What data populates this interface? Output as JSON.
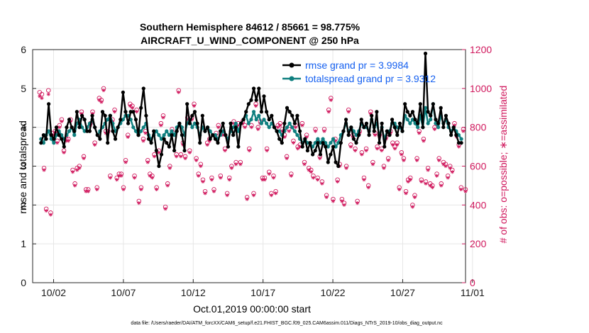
{
  "chart_data": {
    "type": "line",
    "title_line1": "Southern Hemisphere 84612 / 85661 = 98.775%",
    "title_line2": "AIRCRAFT_U_WIND_COMPONENT @ 250 hPa",
    "xlabel": "Oct.01,2019 00:00:00 start",
    "ylabel": "rmse and totalspread",
    "ylabel_right": "# of obs: o=possible; ∗=assimilated",
    "footnote": "data file: /Users/raeder/DAI/ATM_forcXX/CAM6_setup/f.e21.FHIST_BGC.f09_025.CAM6assim.011/Diags_NTrS_2019-10/obs_diag_output.nc",
    "xlim": [
      0.5,
      31.5
    ],
    "ylim": [
      0,
      6
    ],
    "ylim_right": [
      0,
      1200
    ],
    "x_ticks": [
      {
        "value": 2,
        "label": "10/02"
      },
      {
        "value": 7,
        "label": "10/07"
      },
      {
        "value": 12,
        "label": "10/12"
      },
      {
        "value": 17,
        "label": "10/17"
      },
      {
        "value": 22,
        "label": "10/22"
      },
      {
        "value": 27,
        "label": "10/27"
      },
      {
        "value": 32,
        "label": "11/01"
      }
    ],
    "y_ticks": [
      "0",
      "1",
      "2",
      "3",
      "4",
      "5",
      "6"
    ],
    "y_ticks_right": [
      "0",
      "200",
      "400",
      "600",
      "800",
      "1000",
      "1200"
    ],
    "colors": {
      "rmse": "#000000",
      "totalspread": "#0f7f7f",
      "obs": "#d0185d",
      "legend_text": "#1560f0",
      "grid": "#e6e6e6"
    },
    "series": [
      {
        "name": "rmse grand pr = 3.9984",
        "legend": "rmse grand pr = 3.9984",
        "values": [
          3.6,
          3.8,
          3.7,
          4.6,
          3.8,
          3.7,
          4.0,
          3.8,
          3.7,
          3.5,
          4.0,
          4.2,
          4.0,
          3.9,
          4.4,
          4.0,
          4.3,
          4.2,
          3.9,
          3.9,
          4.3,
          4.0,
          3.8,
          3.7,
          4.4,
          4.3,
          3.6,
          4.3,
          3.9,
          3.7,
          4.0,
          4.2,
          4.9,
          4.4,
          4.1,
          4.4,
          4.4,
          4.2,
          3.8,
          4.5,
          5.0,
          4.3,
          3.7,
          3.6,
          3.9,
          3.4,
          3.0,
          3.3,
          3.7,
          3.6,
          3.5,
          3.8,
          3.4,
          3.9,
          4.1,
          3.8,
          3.4,
          4.6,
          4.1,
          4.3,
          4.4,
          4.1,
          3.6,
          4.3,
          3.9,
          4.0,
          3.7,
          3.8,
          3.7,
          3.6,
          3.9,
          4.1,
          3.8,
          3.5,
          4.1,
          3.8,
          4.0,
          3.5,
          4.1,
          4.2,
          4.4,
          4.6,
          4.7,
          5.0,
          4.7,
          5.0,
          4.4,
          4.8,
          4.4,
          4.2,
          4.3,
          4.0,
          3.9,
          3.7,
          3.6,
          4.1,
          4.5,
          4.4,
          4.3,
          4.1,
          4.3,
          3.9,
          3.5,
          3.7,
          3.4,
          3.6,
          3.3,
          3.4,
          3.6,
          3.3,
          3.6,
          3.5,
          3.1,
          3.3,
          3.5,
          3.1,
          3.0,
          3.6,
          3.9,
          4.2,
          3.8,
          4.0,
          3.7,
          3.6,
          3.8,
          4.2,
          4.0,
          4.1,
          3.8,
          4.3,
          3.9,
          4.4,
          3.6,
          4.1,
          3.5,
          3.9,
          3.8,
          4.2,
          4.0,
          3.8,
          4.1,
          3.9,
          4.6,
          4.4,
          4.3,
          4.4,
          4.2,
          4.1,
          4.6,
          4.0,
          5.9,
          4.4,
          4.3,
          4.6,
          4.2,
          4.1,
          4.5,
          4.0,
          4.3,
          4.1,
          3.8,
          4.0,
          3.8,
          3.6,
          3.6
        ]
      },
      {
        "name": "totalspread grand pr = 3.9312",
        "legend": "totalspread grand pr = 3.9312",
        "values": [
          3.7,
          3.6,
          3.8,
          3.9,
          3.7,
          3.6,
          3.8,
          3.9,
          3.8,
          3.7,
          3.8,
          3.9,
          4.0,
          3.8,
          4.1,
          4.2,
          4.0,
          3.9,
          4.0,
          4.1,
          4.2,
          4.0,
          3.8,
          3.9,
          4.0,
          4.1,
          4.2,
          4.3,
          4.1,
          3.9,
          4.0,
          4.1,
          4.2,
          4.3,
          4.3,
          4.2,
          4.0,
          3.9,
          3.8,
          3.9,
          4.0,
          4.1,
          3.8,
          3.7,
          3.8,
          3.9,
          3.8,
          3.7,
          3.8,
          3.9,
          3.8,
          3.9,
          3.8,
          4.0,
          4.1,
          4.0,
          3.8,
          4.1,
          4.2,
          4.0,
          4.1,
          4.0,
          3.8,
          4.0,
          3.9,
          4.0,
          3.9,
          3.8,
          3.8,
          3.7,
          3.8,
          3.9,
          3.8,
          3.7,
          3.9,
          4.0,
          4.1,
          3.9,
          4.1,
          4.2,
          4.3,
          4.1,
          4.2,
          4.4,
          4.2,
          4.3,
          4.1,
          4.2,
          4.1,
          4.0,
          4.1,
          4.0,
          3.9,
          3.9,
          3.8,
          3.9,
          4.0,
          4.1,
          4.0,
          3.9,
          3.8,
          3.7,
          3.6,
          3.7,
          3.6,
          3.6,
          3.5,
          3.6,
          3.7,
          3.6,
          3.7,
          3.6,
          3.5,
          3.6,
          3.7,
          3.5,
          3.6,
          3.8,
          3.9,
          4.1,
          3.9,
          4.0,
          3.9,
          3.8,
          3.9,
          4.1,
          4.0,
          4.0,
          3.9,
          4.2,
          4.0,
          4.1,
          3.8,
          4.0,
          3.7,
          3.9,
          3.9,
          4.1,
          4.1,
          4.0,
          4.0,
          3.9,
          4.3,
          4.2,
          4.1,
          4.2,
          4.1,
          4.0,
          4.3,
          4.0,
          4.5,
          4.1,
          4.2,
          4.6,
          4.1,
          4.0,
          4.3,
          4.1,
          4.2,
          4.0,
          3.9,
          4.0,
          3.9,
          3.8,
          3.7
        ]
      },
      {
        "name": "obs possible",
        "values": [
          980,
          970,
          590,
          380,
          990,
          360,
          770,
          780,
          730,
          810,
          840,
          680,
          740,
          740,
          840,
          580,
          510,
          590,
          600,
          880,
          650,
          480,
          480,
          820,
          880,
          720,
          490,
          950,
          940,
          1000,
          780,
          780,
          550,
          840,
          890,
          540,
          560,
          560,
          490,
          630,
          760,
          920,
          910,
          550,
          890,
          420,
          490,
          740,
          780,
          630,
          560,
          550,
          660,
          490,
          680,
          820,
          860,
          390,
          510,
          600,
          790,
          770,
          660,
          990,
          660,
          720,
          650,
          850,
          680,
          850,
          920,
          640,
          560,
          610,
          530,
          470,
          720,
          740,
          540,
          480,
          770,
          810,
          550,
          770,
          690,
          460,
          540,
          600,
          830,
          620,
          820,
          620,
          830,
          810,
          440,
          690,
          810,
          460,
          920,
          800,
          830,
          540,
          540,
          690,
          570,
          460,
          550,
          470,
          810,
          820,
          790,
          760,
          650,
          790,
          560,
          730,
          810,
          700,
          710,
          820,
          620,
          760,
          590,
          580,
          550,
          790,
          540,
          650,
          520,
          790,
          450,
          890,
          950,
          430,
          740,
          530,
          610,
          430,
          410,
          600,
          890,
          710,
          760,
          690,
          420,
          780,
          670,
          540,
          690,
          500,
          880,
          620,
          770,
          700,
          760,
          690,
          600,
          750,
          640,
          780,
          720,
          700,
          720,
          490,
          670,
          640,
          470,
          530,
          540,
          400,
          450,
          640,
          780,
          530,
          740,
          520,
          590,
          510,
          500,
          800,
          560,
          640,
          510,
          620,
          610,
          550,
          600,
          580,
          820,
          760,
          710,
          490,
          790,
          480
        ]
      },
      {
        "name": "obs assimilated",
        "values": [
          960,
          950,
          580,
          370,
          970,
          350,
          760,
          770,
          720,
          800,
          830,
          670,
          730,
          730,
          830,
          570,
          500,
          580,
          590,
          870,
          640,
          470,
          470,
          810,
          870,
          710,
          480,
          940,
          930,
          990,
          770,
          770,
          540,
          830,
          880,
          530,
          550,
          550,
          480,
          620,
          750,
          910,
          900,
          540,
          880,
          410,
          480,
          730,
          770,
          620,
          550,
          540,
          650,
          480,
          670,
          810,
          850,
          380,
          500,
          590,
          780,
          760,
          650,
          980,
          650,
          710,
          640,
          840,
          670,
          840,
          910,
          630,
          550,
          600,
          520,
          460,
          710,
          730,
          530,
          470,
          760,
          800,
          540,
          760,
          680,
          450,
          530,
          590,
          820,
          610,
          810,
          610,
          820,
          800,
          430,
          680,
          800,
          450,
          910,
          790,
          820,
          530,
          530,
          680,
          560,
          450,
          540,
          460,
          800,
          810,
          780,
          750,
          640,
          780,
          550,
          720,
          800,
          690,
          700,
          810,
          610,
          750,
          580,
          570,
          540,
          780,
          530,
          640,
          510,
          780,
          440,
          880,
          940,
          420,
          730,
          520,
          600,
          420,
          400,
          590,
          880,
          700,
          750,
          680,
          410,
          770,
          660,
          530,
          680,
          490,
          870,
          610,
          760,
          690,
          750,
          680,
          590,
          740,
          630,
          770,
          710,
          690,
          710,
          480,
          660,
          630,
          460,
          520,
          530,
          390,
          440,
          630,
          770,
          520,
          730,
          510,
          580,
          500,
          490,
          790,
          550,
          630,
          500,
          610,
          600,
          540,
          590,
          570,
          810,
          750,
          700,
          480,
          780,
          470
        ]
      }
    ]
  }
}
